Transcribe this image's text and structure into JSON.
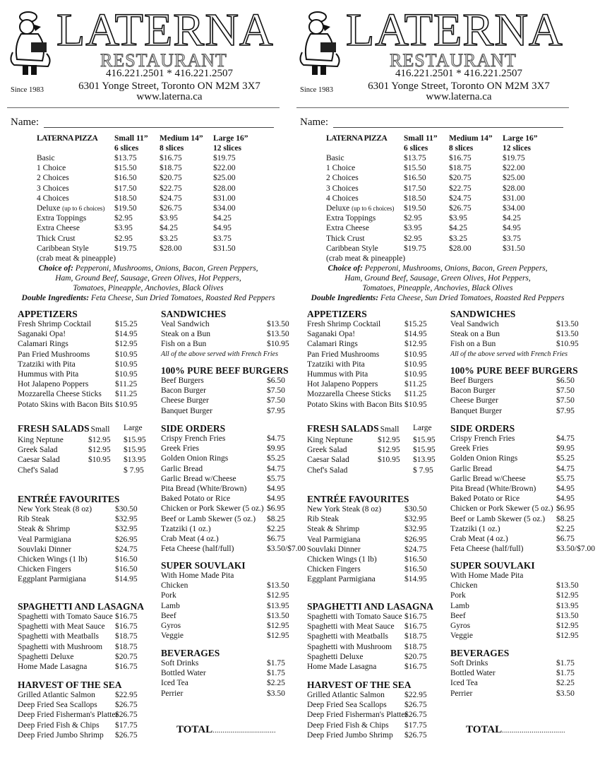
{
  "header": {
    "brand": "LATERNA",
    "subtitle": "RESTAURANT",
    "phones": "416.221.2501  *  416.221.2507",
    "address": "6301 Yonge Street, Toronto ON M2M 3X7",
    "website": "www.laterna.ca",
    "since": "Since 1983",
    "logo_icon": "chef-waiter-icon"
  },
  "name_label": "Name:",
  "pizza": {
    "title": "LATERNA PIZZA",
    "sizes": [
      {
        "label": "Small 11”",
        "slices": "6 slices"
      },
      {
        "label": "Medium 14”",
        "slices": "8 slices"
      },
      {
        "label": "Large 16”",
        "slices": "12 slices"
      }
    ],
    "rows": [
      {
        "name": "Basic",
        "prices": [
          "$13.75",
          "$16.75",
          "$19.75"
        ]
      },
      {
        "name": "1 Choice",
        "prices": [
          "$15.50",
          "$18.75",
          "$22.00"
        ]
      },
      {
        "name": "2 Choices",
        "prices": [
          "$16.50",
          "$20.75",
          "$25.00"
        ]
      },
      {
        "name": "3 Choices",
        "prices": [
          "$17.50",
          "$22.75",
          "$28.00"
        ]
      },
      {
        "name": "4 Choices",
        "prices": [
          "$18.50",
          "$24.75",
          "$31.00"
        ]
      },
      {
        "name": "Deluxe",
        "note": "(up to 6 choices)",
        "prices": [
          "$19.50",
          "$26.75",
          "$34.00"
        ]
      },
      {
        "name": "Extra Toppings",
        "prices": [
          "$2.95",
          "$3.95",
          "$4.25"
        ]
      },
      {
        "name": "Extra Cheese",
        "prices": [
          "$3.95",
          "$4.25",
          "$4.95"
        ]
      },
      {
        "name": "Thick Crust",
        "prices": [
          "$2.95",
          "$3.25",
          "$3.75"
        ]
      },
      {
        "name": "Caribbean Style",
        "prices": [
          "$19.75",
          "$28.00",
          "$31.50"
        ]
      }
    ],
    "caribbean_note": "(crab meat & pineapple)",
    "choice_label": "Choice of:",
    "choice_lines": [
      "Pepperoni,   Mushrooms,   Onions,   Bacon,   Green Peppers,",
      "Ham,   Ground Beef,   Sausage,   Green Olives,   Hot Peppers,",
      "Tomatoes,   Pineapple,   Anchovies,   Black Olives"
    ],
    "double_label": "Double Ingredients:",
    "double_text": "Feta Cheese,   Sun Dried Tomatoes,   Roasted Red Peppers"
  },
  "sections": {
    "appetizers": {
      "title": "APPETIZERS",
      "items": [
        {
          "name": "Fresh Shrimp Cocktail",
          "price": "$15.25"
        },
        {
          "name": "Saganaki Opa!",
          "price": "$14.95"
        },
        {
          "name": "Calamari Rings",
          "price": "$12.95"
        },
        {
          "name": "Pan Fried Mushrooms",
          "price": "$10.95"
        },
        {
          "name": "Tzatziki with Pita",
          "price": "$10.95"
        },
        {
          "name": "Hummus with Pita",
          "price": "$10.95"
        },
        {
          "name": "Hot Jalapeno Poppers",
          "price": "$11.25"
        },
        {
          "name": "Mozzarella Cheese Sticks",
          "price": "$11.25"
        },
        {
          "name": "Potato Skins with Bacon Bits",
          "price": "$10.95"
        }
      ]
    },
    "salads": {
      "title": "FRESH SALADS",
      "col_small": "Small",
      "col_large": "Large",
      "items": [
        {
          "name": "King Neptune",
          "small": "$12.95",
          "price": "$15.95"
        },
        {
          "name": "Greek Salad",
          "small": "$12.95",
          "price": "$15.95"
        },
        {
          "name": "Caesar Salad",
          "small": "$10.95",
          "price": "$13.95"
        },
        {
          "name": "Chef's Salad",
          "small": "",
          "price": "$  7.95"
        }
      ]
    },
    "entrees": {
      "title": "ENTRÉE FAVOURITES",
      "items": [
        {
          "name": "New York Steak (8 oz)",
          "price": "$30.50"
        },
        {
          "name": "Rib Steak",
          "price": "$32.95"
        },
        {
          "name": "Steak & Shrimp",
          "price": "$32.95"
        },
        {
          "name": "Veal Parmigiana",
          "price": "$26.95"
        },
        {
          "name": "Souvlaki Dinner",
          "price": "$24.75"
        },
        {
          "name": "Chicken Wings (1 lb)",
          "price": "$16.50"
        },
        {
          "name": "Chicken Fingers",
          "price": "$16.50"
        },
        {
          "name": "Eggplant Parmigiana",
          "price": "$14.95"
        }
      ]
    },
    "spaghetti": {
      "title": "SPAGHETTI AND LASAGNA",
      "items": [
        {
          "name": "Spaghetti with Tomato Sauce",
          "price": "$16.75"
        },
        {
          "name": "Spaghetti with Meat Sauce",
          "price": "$16.75"
        },
        {
          "name": "Spaghetti with Meatballs",
          "price": "$18.75"
        },
        {
          "name": "Spaghetti with Mushroom",
          "price": "$18.75"
        },
        {
          "name": "Spaghetti Deluxe",
          "price": "$20.75"
        },
        {
          "name": "Home Made Lasagna",
          "price": "$16.75"
        }
      ]
    },
    "seafood": {
      "title": "HARVEST OF THE SEA",
      "items": [
        {
          "name": "Grilled Atlantic Salmon",
          "price": "$22.95"
        },
        {
          "name": "Deep Fried Sea Scallops",
          "price": "$26.75"
        },
        {
          "name": "Deep Fried Fisherman's Platter",
          "price": "$26.75"
        },
        {
          "name": "Deep Fried Fish & Chips",
          "price": "$17.75"
        },
        {
          "name": "Deep Fried Jumbo Shrimp",
          "price": "$26.75"
        }
      ]
    },
    "sandwiches": {
      "title": "SANDWICHES",
      "note": "All of the above served with French Fries",
      "items": [
        {
          "name": "Veal Sandwich",
          "price": "$13.50"
        },
        {
          "name": "Steak on a Bun",
          "price": "$13.50"
        },
        {
          "name": "Fish on a Bun",
          "price": "$10.95"
        }
      ]
    },
    "burgers": {
      "title": "100% PURE BEEF BURGERS",
      "items": [
        {
          "name": "Beef Burgers",
          "price": "$6.50"
        },
        {
          "name": "Bacon Burger",
          "price": "$7.50"
        },
        {
          "name": "Cheese Burger",
          "price": "$7.50"
        },
        {
          "name": "Banquet Burger",
          "price": "$7.95"
        }
      ]
    },
    "sides": {
      "title": "SIDE ORDERS",
      "items": [
        {
          "name": "Crispy French Fries",
          "price": "$4.75"
        },
        {
          "name": "Greek Fries",
          "price": "$9.95"
        },
        {
          "name": "Golden Onion Rings",
          "price": "$5.25"
        },
        {
          "name": "Garlic Bread",
          "price": "$4.75"
        },
        {
          "name": "Garlic Bread w/Cheese",
          "price": "$5.75"
        },
        {
          "name": "Pita Bread (White/Brown)",
          "price": "$4.95"
        },
        {
          "name": "Baked Potato or Rice",
          "price": "$4.95"
        },
        {
          "name": "Chicken or Pork Skewer (5 oz.)",
          "price": "$6.95"
        },
        {
          "name": "Beef or Lamb Skewer (5 oz.)",
          "price": "$8.25"
        },
        {
          "name": "Tzatziki (1 oz.)",
          "price": "$2.25"
        },
        {
          "name": "Crab Meat (4 oz.)",
          "price": "$6.75"
        },
        {
          "name": "Feta Cheese (half/full)",
          "price": "$3.50/$7.00"
        }
      ]
    },
    "souvlaki": {
      "title": "SUPER SOUVLAKI",
      "subtitle": "With Home Made Pita",
      "items": [
        {
          "name": "Chicken",
          "price": "$13.50"
        },
        {
          "name": "Pork",
          "price": "$12.95"
        },
        {
          "name": "Lamb",
          "price": "$13.95"
        },
        {
          "name": "Beef",
          "price": "$13.50"
        },
        {
          "name": "Gyros",
          "price": "$12.95"
        },
        {
          "name": "Veggie",
          "price": "$12.95"
        }
      ]
    },
    "beverages": {
      "title": "BEVERAGES",
      "items": [
        {
          "name": "Soft Drinks",
          "price": "$1.75"
        },
        {
          "name": "Bottled Water",
          "price": "$1.75"
        },
        {
          "name": "Iced Tea",
          "price": "$2.25"
        },
        {
          "name": "Perrier",
          "price": "$3.50"
        }
      ]
    }
  },
  "total_label": "TOTAL",
  "total_dots": "................................"
}
